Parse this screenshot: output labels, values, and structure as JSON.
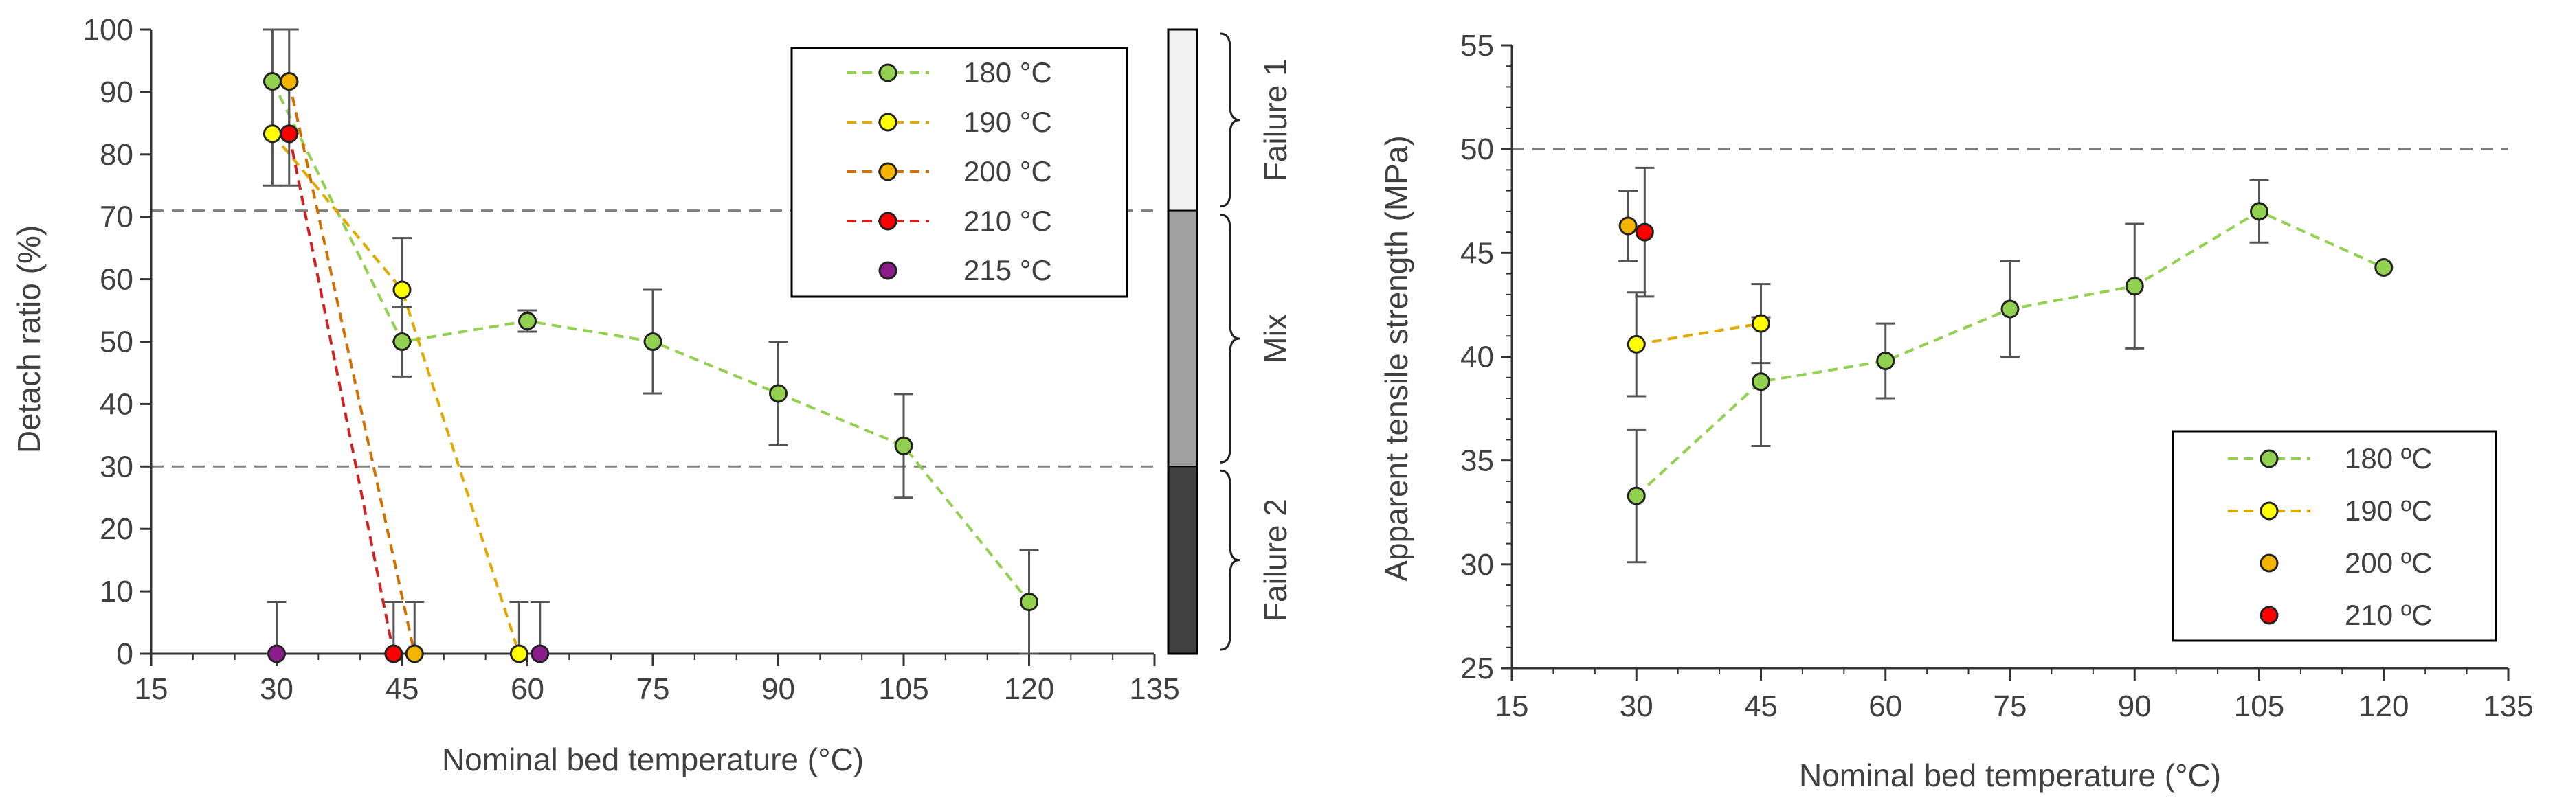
{
  "charts": [
    {
      "chart_data": {
        "type": "scatter",
        "xlabel": "Nominal bed temperature (°C)",
        "ylabel": "Detach ratio (%)",
        "xlim": [
          15,
          135
        ],
        "ylim": [
          0,
          100
        ],
        "xticks": [
          "15",
          "30",
          "45",
          "60",
          "75",
          "90",
          "105",
          "120",
          "135"
        ],
        "yticks": [
          "0",
          "10",
          "20",
          "30",
          "40",
          "50",
          "60",
          "70",
          "80",
          "90",
          "100"
        ],
        "reference_lines": [
          71,
          30
        ],
        "legend_position": "top-right",
        "series": [
          {
            "name": "180 °C",
            "color": "#92d050",
            "line": true,
            "points": [
              {
                "x": 29.5,
                "y": 91.7,
                "err": 8.3
              },
              {
                "x": 45,
                "y": 50,
                "err": 5.6
              },
              {
                "x": 60,
                "y": 53.3,
                "err": 1.7
              },
              {
                "x": 75,
                "y": 50,
                "err": 8.3
              },
              {
                "x": 90,
                "y": 41.7,
                "err": 8.3
              },
              {
                "x": 105,
                "y": 33.3,
                "err": 8.3
              },
              {
                "x": 120,
                "y": 8.3,
                "err": 8.3
              }
            ]
          },
          {
            "name": "190 °C",
            "color": "#ffff00",
            "line": true,
            "points": [
              {
                "x": 29.5,
                "y": 83.3,
                "err": 8.3
              },
              {
                "x": 45,
                "y": 58.3,
                "err": 8.3
              },
              {
                "x": 59,
                "y": 0,
                "err": 8.3
              }
            ]
          },
          {
            "name": "200 °C",
            "color": "#f4b400",
            "line": true,
            "points": [
              {
                "x": 31.5,
                "y": 91.7,
                "err": 8.3
              },
              {
                "x": 46.5,
                "y": 0,
                "err": 8.3
              }
            ]
          },
          {
            "name": "210 °C",
            "color": "#ff0000",
            "line": true,
            "points": [
              {
                "x": 31.5,
                "y": 83.3,
                "err": 8.3
              },
              {
                "x": 44,
                "y": 0,
                "err": 8.3
              }
            ]
          },
          {
            "name": "215 °C",
            "color": "#8b1e8b",
            "line": false,
            "points": [
              {
                "x": 30,
                "y": 0,
                "err": 8.3
              },
              {
                "x": 61.5,
                "y": 0,
                "err": 8.3
              }
            ]
          }
        ]
      },
      "colorbar": {
        "segments": [
          {
            "from": 71,
            "to": 100,
            "color": "#f2f2f2"
          },
          {
            "from": 30,
            "to": 71,
            "color": "#a0a0a0"
          },
          {
            "from": 0,
            "to": 30,
            "color": "#404040"
          }
        ],
        "labels": [
          {
            "text": "Failure 1",
            "from": 71,
            "to": 100
          },
          {
            "text": "Mix",
            "from": 30,
            "to": 71
          },
          {
            "text": "Failure 2",
            "from": 0,
            "to": 30
          }
        ]
      }
    },
    {
      "chart_data": {
        "type": "scatter",
        "xlabel": "Nominal bed temperature (°C)",
        "ylabel": "Apparent tensile strength (MPa)",
        "xlim": [
          15,
          135
        ],
        "ylim": [
          25,
          55
        ],
        "xticks": [
          "15",
          "30",
          "45",
          "60",
          "75",
          "90",
          "105",
          "120",
          "135"
        ],
        "yticks": [
          "25",
          "30",
          "35",
          "40",
          "45",
          "50",
          "55"
        ],
        "reference_lines": [
          50
        ],
        "legend_position": "bottom-right",
        "series": [
          {
            "name": "180 ºC",
            "color": "#92d050",
            "line": true,
            "points": [
              {
                "x": 30,
                "y": 33.3,
                "err": 3.2
              },
              {
                "x": 45,
                "y": 38.8,
                "err": 3.1
              },
              {
                "x": 60,
                "y": 39.8,
                "err": 1.8
              },
              {
                "x": 75,
                "y": 42.3,
                "err": 2.3
              },
              {
                "x": 90,
                "y": 43.4,
                "err": 3.0
              },
              {
                "x": 105,
                "y": 47,
                "err": 1.5
              },
              {
                "x": 120,
                "y": 44.3,
                "err": 0
              }
            ]
          },
          {
            "name": "190 ºC",
            "color": "#ffff00",
            "line": true,
            "points": [
              {
                "x": 30,
                "y": 40.6,
                "err": 2.5
              },
              {
                "x": 45,
                "y": 41.6,
                "err": 1.9
              }
            ]
          },
          {
            "name": "200 ºC",
            "color": "#f4b400",
            "line": false,
            "points": [
              {
                "x": 29,
                "y": 46.3,
                "err": 1.7
              }
            ]
          },
          {
            "name": "210 ºC",
            "color": "#ff0000",
            "line": false,
            "points": [
              {
                "x": 31,
                "y": 46,
                "err": 3.1
              }
            ]
          }
        ]
      }
    }
  ]
}
